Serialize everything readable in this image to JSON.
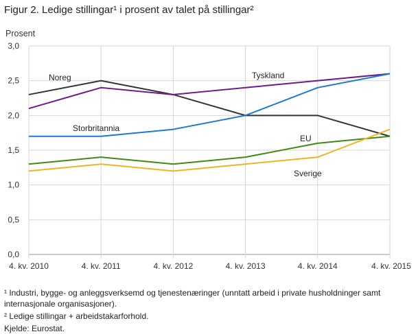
{
  "title": "Figur 2. Ledige stillingar¹  i prosent av talet på stillingar²",
  "footnotes": {
    "note1": "¹ Industri, bygge- og anleggsverksemd og tjenestenæringer (unntatt arbeid i private husholdninger  samt internasjonale organisasjoner).",
    "note2": "² Ledige stillingar + arbeidstakarforhold.",
    "source": "Kjelde: Eurostat."
  },
  "chart_data": {
    "type": "line",
    "title": "Figur 2. Ledige stillingar¹  i prosent av talet på stillingar²",
    "xlabel": "",
    "ylabel": "Prosent",
    "ylim": [
      0,
      3.0
    ],
    "yticks": [
      "0,0",
      "0,5",
      "1,0",
      "1,5",
      "2,0",
      "2,5",
      "3,0"
    ],
    "grid": true,
    "legend": "inline labels",
    "categories": [
      "4. kv. 2010",
      "4. kv. 2011",
      "4. kv. 2012",
      "4. kv. 2013",
      "4. kv. 2014",
      "4. kv. 2015"
    ],
    "series": [
      {
        "name": "Noreg",
        "color": "#333333",
        "values": [
          2.3,
          2.5,
          2.3,
          2.0,
          2.0,
          1.7
        ]
      },
      {
        "name": "Tyskland",
        "color": "#6c1a8c",
        "values": [
          2.1,
          2.4,
          2.3,
          2.4,
          2.5,
          2.6
        ]
      },
      {
        "name": "Storbritannia",
        "color": "#1a7ad4",
        "values": [
          1.7,
          1.7,
          1.8,
          2.0,
          2.4,
          2.6
        ]
      },
      {
        "name": "EU",
        "color": "#3f8a0f",
        "values": [
          1.3,
          1.4,
          1.3,
          1.4,
          1.6,
          1.7
        ]
      },
      {
        "name": "Sverige",
        "color": "#f0b323",
        "values": [
          1.2,
          1.3,
          1.2,
          1.3,
          1.4,
          1.8
        ]
      }
    ]
  }
}
